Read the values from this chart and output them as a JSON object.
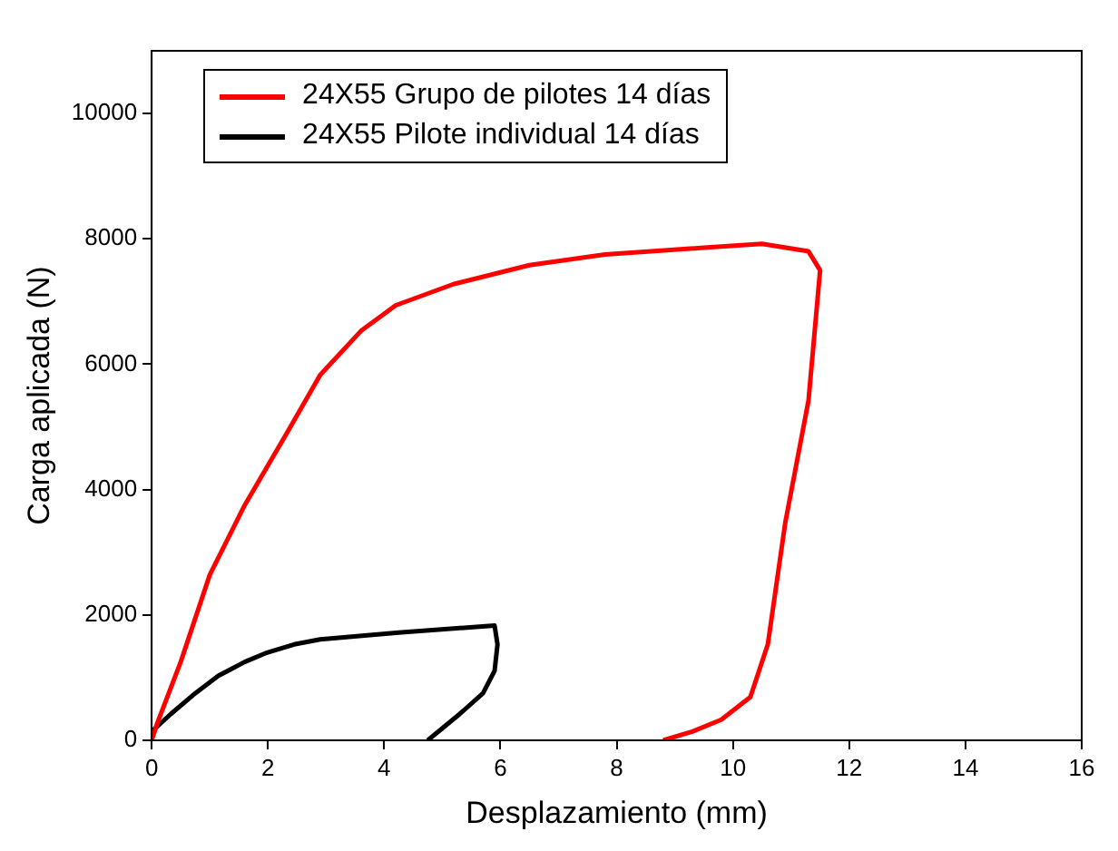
{
  "chart_data": {
    "type": "line",
    "xlabel": "Desplazamiento (mm)",
    "ylabel": "Carga aplicada (N)",
    "xlim": [
      0,
      16
    ],
    "xticks": [
      0,
      2,
      4,
      6,
      8,
      10,
      12,
      14,
      16
    ],
    "ylim": [
      0,
      11000
    ],
    "yticks": [
      0,
      2000,
      4000,
      6000,
      8000,
      10000
    ],
    "grid": false,
    "legend": "top left",
    "marker": "none",
    "line_style": "solid",
    "series": [
      {
        "name": "24X55 Grupo de pilotes 14 días",
        "color": "#ff0000",
        "x": [
          0,
          0.1,
          0.5,
          1.0,
          1.6,
          2.3,
          2.9,
          3.6,
          4.2,
          5.2,
          6.5,
          7.8,
          9.5,
          10.5,
          11.3,
          11.5,
          11.3,
          10.9,
          10.6,
          10.3,
          9.8,
          9.3,
          8.8
        ],
        "values": [
          0,
          280,
          1250,
          2640,
          3750,
          4860,
          5830,
          6530,
          6940,
          7280,
          7580,
          7750,
          7860,
          7920,
          7800,
          7500,
          5420,
          3470,
          1530,
          690,
          330,
          140,
          0
        ]
      },
      {
        "name": "24X55 Pilote individual 14 días",
        "color": "#000000",
        "x": [
          0,
          0.33,
          0.75,
          1.15,
          1.6,
          1.96,
          2.45,
          2.9,
          4.25,
          5.9,
          5.95,
          5.9,
          5.7,
          5.3,
          4.75
        ],
        "values": [
          140,
          420,
          750,
          1030,
          1250,
          1390,
          1530,
          1610,
          1720,
          1830,
          1530,
          1110,
          750,
          420,
          0
        ]
      }
    ]
  }
}
